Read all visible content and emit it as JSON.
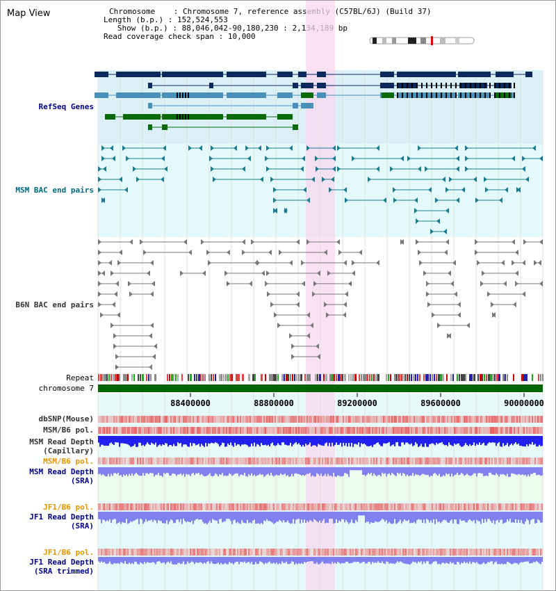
{
  "view_title": "Map View",
  "info": {
    "chromosome_label": "Chromosome",
    "chromosome_value": "Chromosome 7, reference assembly (C57BL/6J) (Build 37)",
    "length_label": "Length (b.p.)",
    "length_value": "152,524,553",
    "show_label": "Show (b.p.)",
    "show_value": "88,046,042-90,180,230 : 2,134,189 bp",
    "span_label": "Read coverage check span",
    "span_value": "10,000"
  },
  "tracks": {
    "refseq": "RefSeq Genes",
    "msm_bac": "MSM BAC end pairs",
    "b6n_bac": "B6N BAC end pairs",
    "repeat": "Repeat",
    "chromosome": "chromosome 7",
    "dbsnp": "dbSNP(Mouse)",
    "msm_b6_pol_1": "MSM/B6 pol.",
    "msm_depth_cap_1": "MSM Read Depth",
    "msm_depth_cap_2": "(Capillary)",
    "msm_b6_pol_2": "MSM/B6 pol.",
    "msm_depth_sra_1": "MSM Read Depth",
    "msm_depth_sra_2": "(SRA)",
    "jf1_pol_1": "JF1/B6 pol.",
    "jf1_depth_1": "JF1 Read Depth",
    "jf1_depth_1b": "(SRA)",
    "jf1_pol_2": "JF1/B6 pol.",
    "jf1_depth_2": "JF1 Read Depth",
    "jf1_depth_2b": "(SRA trimmed)"
  },
  "axis_ticks": [
    "88400000",
    "88800000",
    "89200000",
    "89600000",
    "90000000"
  ],
  "colors": {
    "refseq_bg": "#dcf0f8",
    "msm_bg": "#e4fafa",
    "highlight": "#f8d8f0",
    "chromosome_bar": "#006400",
    "snp": "#e85050",
    "depth_dark": "#2020f0",
    "depth_light": "#8080f0"
  }
}
